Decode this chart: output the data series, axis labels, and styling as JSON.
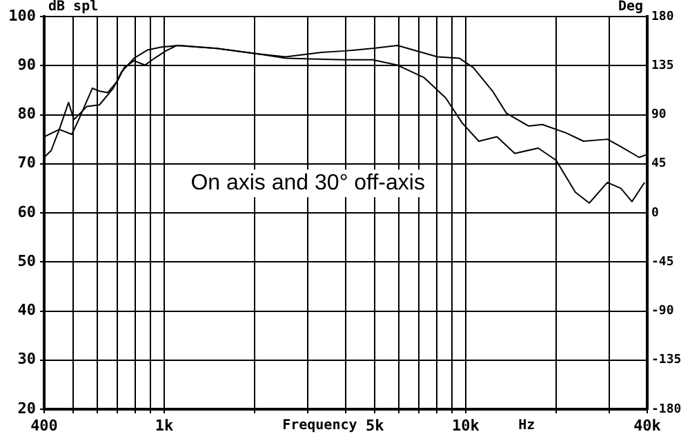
{
  "chart_data": {
    "type": "line",
    "xlabel": "Frequency",
    "ylabel": "dB spl",
    "y2label": "Deg",
    "annotations": [
      "On axis and 30° off-axis",
      "Hz"
    ],
    "series": [
      {
        "color": "#000000",
        "x": [
          400,
          422,
          449,
          482,
          502,
          555,
          610,
          678,
          722,
          794,
          882,
          980,
          1124,
          1493,
          2048,
          2530,
          3328,
          3980,
          4910,
          5940,
          8060,
          9540,
          10600,
          12280,
          13650,
          16160,
          17950,
          21500,
          24600,
          29500,
          32700,
          37600,
          39600
        ],
        "values": [
          71.3,
          72.7,
          77,
          82.5,
          79,
          81.7,
          82,
          85.4,
          88.7,
          91.5,
          93.2,
          93.8,
          94.1,
          93.5,
          92.4,
          91.8,
          92.7,
          93,
          93.5,
          94.1,
          91.8,
          91.5,
          89.6,
          84.8,
          80.3,
          77.7,
          78,
          76.3,
          74.6,
          75,
          73.5,
          71.3,
          71.8
        ]
      },
      {
        "color": "#000000",
        "x": [
          400,
          449,
          494,
          520,
          578,
          610,
          650,
          699,
          737,
          794,
          864,
          929,
          1013,
          1100,
          1160,
          1493,
          2048,
          2530,
          3328,
          3980,
          4910,
          5940,
          7260,
          8590,
          9740,
          11060,
          12700,
          14550,
          17400,
          19950,
          23100,
          25700,
          29500,
          32700,
          35600,
          39200
        ],
        "values": [
          75.5,
          77,
          76,
          78.9,
          85.4,
          84.8,
          84.5,
          86.8,
          89.6,
          91,
          90.1,
          91.5,
          93,
          94.1,
          94,
          93.5,
          92.4,
          91.5,
          91.3,
          91.2,
          91.2,
          90.1,
          87.6,
          83.4,
          78.3,
          74.6,
          75.5,
          72.1,
          73.2,
          70.7,
          64.2,
          62,
          66.2,
          65,
          62.3,
          66.2
        ]
      }
    ],
    "log": "x",
    "xlim": [
      400,
      40000
    ],
    "xticks": [
      {
        "value": 400,
        "label": "400"
      },
      {
        "value": 500,
        "label": null
      },
      {
        "value": 600,
        "label": null
      },
      {
        "value": 700,
        "label": null
      },
      {
        "value": 800,
        "label": null
      },
      {
        "value": 900,
        "label": null
      },
      {
        "value": 1000,
        "label": "1k"
      },
      {
        "value": 2000,
        "label": null
      },
      {
        "value": 3000,
        "label": null
      },
      {
        "value": 4000,
        "label": null
      },
      {
        "value": 5000,
        "label": "5k"
      },
      {
        "value": 6000,
        "label": null
      },
      {
        "value": 7000,
        "label": null
      },
      {
        "value": 8000,
        "label": null
      },
      {
        "value": 9000,
        "label": null
      },
      {
        "value": 10000,
        "label": "10k"
      },
      {
        "value": 20000,
        "label": null
      },
      {
        "value": 30000,
        "label": null
      },
      {
        "value": 40000,
        "label": "40k"
      }
    ],
    "ylim": [
      20,
      100
    ],
    "yticks": [
      20,
      30,
      40,
      50,
      60,
      70,
      80,
      90,
      100
    ],
    "y2lim": [
      -180,
      180
    ],
    "y2ticks": [
      -180,
      -135,
      -90,
      -45,
      0,
      45,
      90,
      135,
      180
    ],
    "grid": true,
    "marker": "none",
    "line_style": "solid",
    "legend": false
  }
}
